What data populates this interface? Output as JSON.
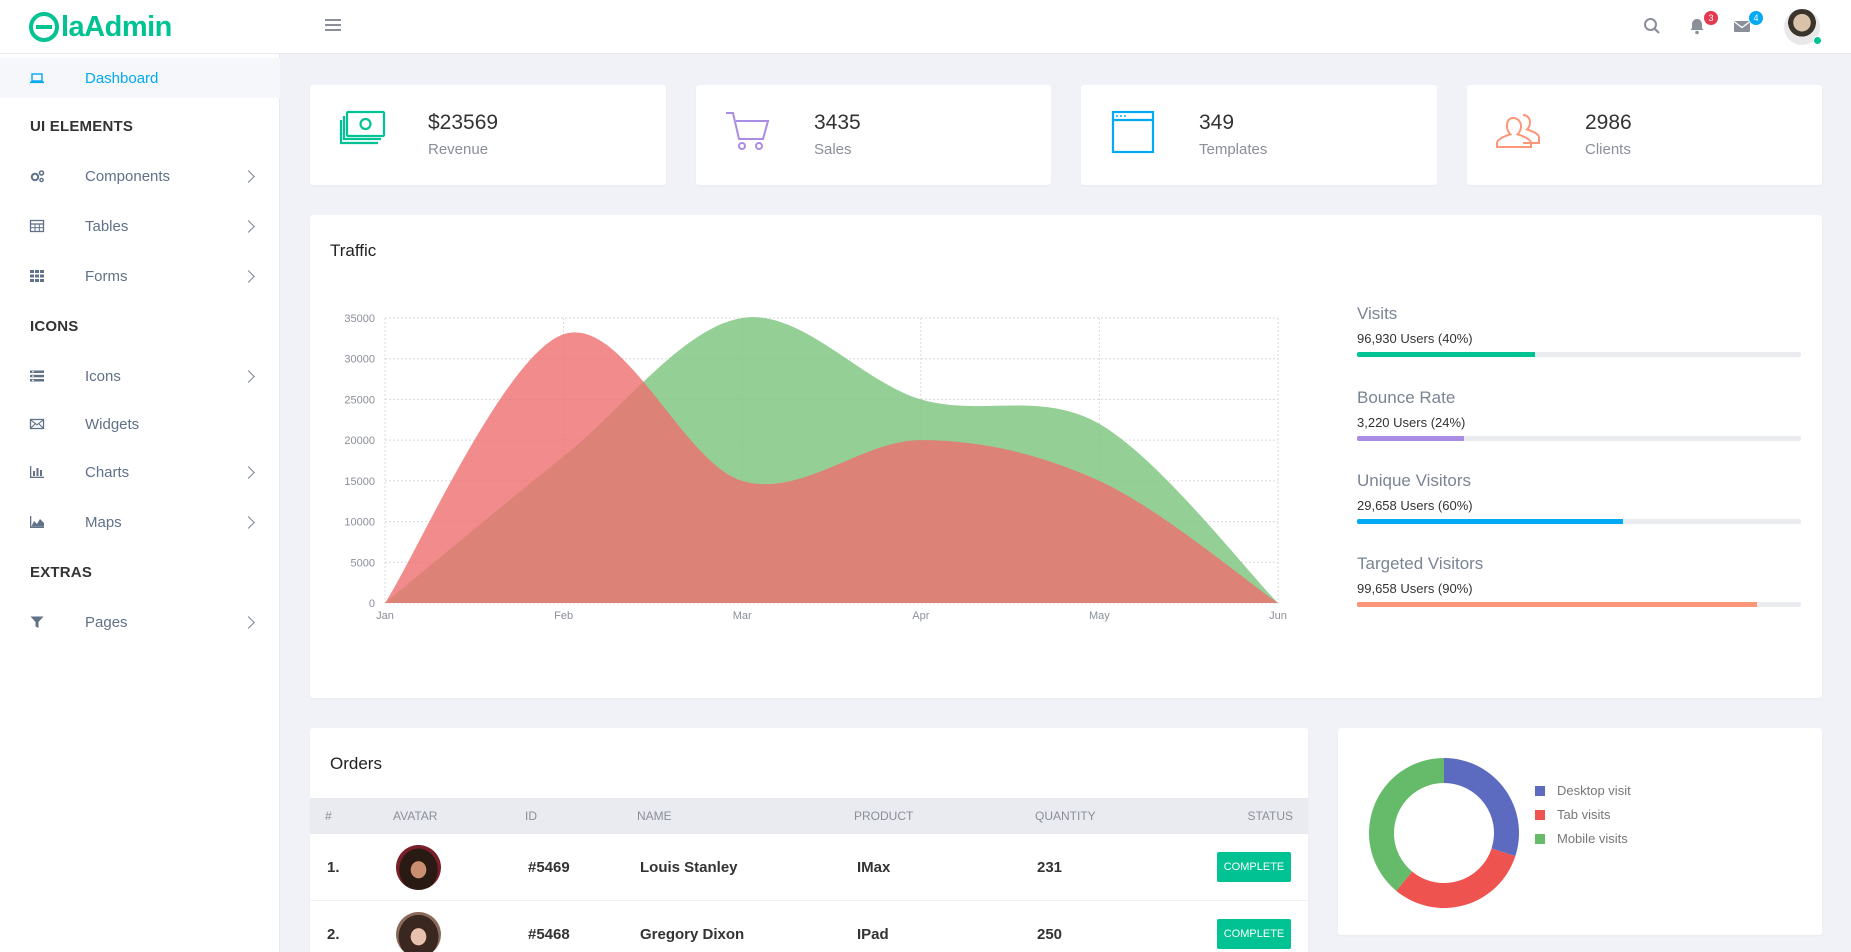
{
  "app": {
    "logo_text": "laAdmin"
  },
  "header": {
    "notifications_count": "3",
    "messages_count": "4"
  },
  "sidebar": {
    "items": [
      {
        "label": "Dashboard",
        "icon": "laptop-icon"
      },
      {
        "section": "UI ELEMENTS"
      },
      {
        "label": "Components",
        "icon": "cogs-icon"
      },
      {
        "label": "Tables",
        "icon": "table-icon"
      },
      {
        "label": "Forms",
        "icon": "grid-icon"
      },
      {
        "section": "ICONS"
      },
      {
        "label": "Icons",
        "icon": "list-icon"
      },
      {
        "label": "Widgets",
        "icon": "envelope-icon"
      },
      {
        "label": "Charts",
        "icon": "bar-chart-icon"
      },
      {
        "label": "Maps",
        "icon": "area-chart-icon"
      },
      {
        "section": "EXTRAS"
      },
      {
        "label": "Pages",
        "icon": "filter-icon"
      }
    ]
  },
  "stats": [
    {
      "value": "$23569",
      "label": "Revenue",
      "icon": "money-icon",
      "color": "#00c292"
    },
    {
      "value": "3435",
      "label": "Sales",
      "icon": "cart-icon",
      "color": "#ab8ce4"
    },
    {
      "value": "349",
      "label": "Templates",
      "icon": "browser-icon",
      "color": "#03a9f3"
    },
    {
      "value": "2986",
      "label": "Clients",
      "icon": "users-icon",
      "color": "#fb9678"
    }
  ],
  "traffic": {
    "title": "Traffic",
    "progress": [
      {
        "title": "Visits",
        "sub": "96,930 Users (40%)",
        "percent": 40,
        "color": "#00c292"
      },
      {
        "title": "Bounce Rate",
        "sub": "3,220 Users (24%)",
        "percent": 24,
        "color": "#ab8ce4"
      },
      {
        "title": "Unique Visitors",
        "sub": "29,658 Users (60%)",
        "percent": 60,
        "color": "#03a9f3"
      },
      {
        "title": "Targeted Visitors",
        "sub": "99,658 Users (90%)",
        "percent": 90,
        "color": "#fb9678"
      }
    ]
  },
  "chart_data": [
    {
      "type": "area",
      "x": [
        "Jan",
        "Feb",
        "Mar",
        "Apr",
        "May",
        "Jun"
      ],
      "ylim": [
        0,
        35000
      ],
      "yticks": [
        0,
        5000,
        10000,
        15000,
        20000,
        25000,
        30000,
        35000
      ],
      "grid": true,
      "series": [
        {
          "values": [
            0,
            18000,
            35000,
            25000,
            22000,
            0
          ],
          "color": "#81c784"
        },
        {
          "values": [
            0,
            33000,
            15000,
            20000,
            15000,
            0
          ],
          "color": "#ef6e6e"
        }
      ]
    },
    {
      "type": "pie",
      "donut": true,
      "series": [
        {
          "name": "Desktop visit",
          "value": 30,
          "color": "#5c6bc0"
        },
        {
          "name": "Tab visits",
          "value": 31,
          "color": "#ef5350"
        },
        {
          "name": "Mobile visits",
          "value": 39,
          "color": "#66bb6a"
        }
      ]
    }
  ],
  "orders": {
    "title": "Orders",
    "columns": [
      "#",
      "AVATAR",
      "ID",
      "NAME",
      "PRODUCT",
      "QUANTITY",
      "STATUS"
    ],
    "rows": [
      {
        "num": "1.",
        "id": "#5469",
        "name": "Louis Stanley",
        "product": "IMax",
        "quantity": "231",
        "status": "COMPLETE"
      },
      {
        "num": "2.",
        "id": "#5468",
        "name": "Gregory Dixon",
        "product": "IPad",
        "quantity": "250",
        "status": "COMPLETE"
      }
    ]
  }
}
